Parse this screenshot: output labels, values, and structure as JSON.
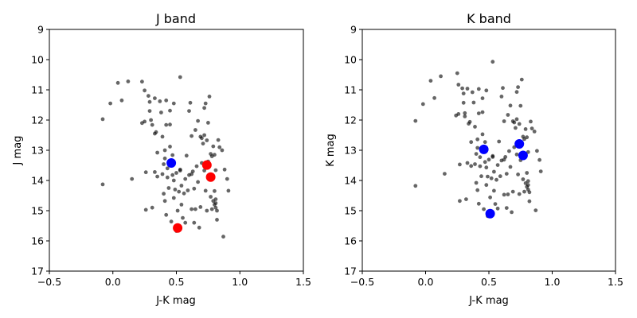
{
  "chart_data": [
    {
      "type": "scatter",
      "title": "J band",
      "xlabel": "J-K mag",
      "ylabel": "J mag",
      "xlim": [
        -0.5,
        1.5
      ],
      "ylim": [
        17,
        9
      ],
      "y_inverted": true,
      "xticks": [
        "−0.5",
        "0.0",
        "0.5",
        "1.0",
        "1.5"
      ],
      "xtick_values": [
        -0.5,
        0.0,
        0.5,
        1.0,
        1.5
      ],
      "yticks": [
        "9",
        "10",
        "11",
        "12",
        "13",
        "14",
        "15",
        "16",
        "17"
      ],
      "ytick_values": [
        9,
        10,
        11,
        12,
        13,
        14,
        15,
        16,
        17
      ],
      "grid": false,
      "series": [
        {
          "color": "#000000",
          "opacity": 0.6,
          "marker_size": "small",
          "points": [
            [
              -0.08,
              11.97
            ],
            [
              -0.08,
              14.13
            ],
            [
              -0.02,
              11.45
            ],
            [
              0.04,
              10.77
            ],
            [
              0.07,
              11.35
            ],
            [
              0.12,
              10.72
            ],
            [
              0.15,
              13.95
            ],
            [
              0.23,
              10.73
            ],
            [
              0.25,
              11.02
            ],
            [
              0.23,
              12.1
            ],
            [
              0.25,
              12.05
            ],
            [
              0.26,
              13.73
            ],
            [
              0.26,
              14.97
            ],
            [
              0.28,
              11.2
            ],
            [
              0.29,
              11.4
            ],
            [
              0.29,
              11.7
            ],
            [
              0.3,
              12.0
            ],
            [
              0.31,
              12.16
            ],
            [
              0.31,
              14.9
            ],
            [
              0.33,
              13.72
            ],
            [
              0.33,
              11.28
            ],
            [
              0.33,
              12.45
            ],
            [
              0.34,
              12.4
            ],
            [
              0.35,
              13.08
            ],
            [
              0.35,
              13.87
            ],
            [
              0.37,
              11.38
            ],
            [
              0.38,
              11.75
            ],
            [
              0.39,
              12.55
            ],
            [
              0.39,
              13.79
            ],
            [
              0.4,
              13.46
            ],
            [
              0.4,
              14.44
            ],
            [
              0.41,
              14.68
            ],
            [
              0.41,
              13.0
            ],
            [
              0.41,
              13.27
            ],
            [
              0.42,
              11.35
            ],
            [
              0.42,
              12.16
            ],
            [
              0.42,
              15.14
            ],
            [
              0.43,
              13.9
            ],
            [
              0.43,
              13.6
            ],
            [
              0.44,
              14.25
            ],
            [
              0.45,
              12.15
            ],
            [
              0.45,
              11.69
            ],
            [
              0.45,
              12.88
            ],
            [
              0.46,
              13.41
            ],
            [
              0.46,
              15.36
            ],
            [
              0.47,
              13.16
            ],
            [
              0.47,
              13.82
            ],
            [
              0.48,
              14.58
            ],
            [
              0.48,
              11.45
            ],
            [
              0.48,
              14.0
            ],
            [
              0.49,
              14.3
            ],
            [
              0.5,
              15.67
            ],
            [
              0.5,
              13.75
            ],
            [
              0.51,
              15.0
            ],
            [
              0.52,
              14.37
            ],
            [
              0.53,
              13.64
            ],
            [
              0.53,
              13.67
            ],
            [
              0.53,
              10.58
            ],
            [
              0.54,
              14.17
            ],
            [
              0.54,
              14.8
            ],
            [
              0.55,
              15.24
            ],
            [
              0.56,
              14.43
            ],
            [
              0.57,
              13.95
            ],
            [
              0.57,
              15.4
            ],
            [
              0.58,
              13.18
            ],
            [
              0.59,
              14.33
            ],
            [
              0.6,
              11.7
            ],
            [
              0.6,
              13.82
            ],
            [
              0.61,
              11.43
            ],
            [
              0.62,
              13.79
            ],
            [
              0.62,
              14.95
            ],
            [
              0.62,
              12.53
            ],
            [
              0.63,
              13.7
            ],
            [
              0.64,
              14.27
            ],
            [
              0.64,
              15.4
            ],
            [
              0.65,
              14.95
            ],
            [
              0.65,
              12.33
            ],
            [
              0.66,
              13.53
            ],
            [
              0.67,
              14.05
            ],
            [
              0.67,
              12.03
            ],
            [
              0.68,
              15.56
            ],
            [
              0.69,
              12.55
            ],
            [
              0.69,
              14.88
            ],
            [
              0.7,
              12.6
            ],
            [
              0.7,
              13.42
            ],
            [
              0.71,
              12.78
            ],
            [
              0.72,
              11.6
            ],
            [
              0.72,
              12.5
            ],
            [
              0.72,
              13.67
            ],
            [
              0.73,
              14.34
            ],
            [
              0.73,
              11.45
            ],
            [
              0.74,
              12.67
            ],
            [
              0.74,
              15.0
            ],
            [
              0.75,
              12.09
            ],
            [
              0.75,
              13.89
            ],
            [
              0.75,
              13.37
            ],
            [
              0.76,
              11.22
            ],
            [
              0.77,
              13.12
            ],
            [
              0.77,
              14.54
            ],
            [
              0.78,
              13.2
            ],
            [
              0.78,
              14.95
            ],
            [
              0.79,
              12.87
            ],
            [
              0.79,
              14.68
            ],
            [
              0.8,
              13.15
            ],
            [
              0.8,
              14.8
            ],
            [
              0.8,
              14.35
            ],
            [
              0.81,
              14.62
            ],
            [
              0.81,
              14.75
            ],
            [
              0.81,
              14.9
            ],
            [
              0.81,
              13.66
            ],
            [
              0.82,
              15.0
            ],
            [
              0.82,
              15.3
            ],
            [
              0.83,
              12.66
            ],
            [
              0.84,
              12.9
            ],
            [
              0.86,
              13.0
            ],
            [
              0.87,
              15.86
            ],
            [
              0.88,
              13.64
            ],
            [
              0.9,
              13.95
            ],
            [
              0.91,
              14.34
            ]
          ]
        },
        {
          "color": "#0000ff",
          "marker_size": "large",
          "points": [
            [
              0.46,
              13.42
            ]
          ]
        },
        {
          "color": "#ff0000",
          "marker_size": "large",
          "points": [
            [
              0.51,
              15.57
            ],
            [
              0.74,
              13.49
            ],
            [
              0.77,
              13.89
            ]
          ]
        }
      ]
    },
    {
      "type": "scatter",
      "title": "K band",
      "xlabel": "J-K mag",
      "ylabel": "K mag",
      "xlim": [
        -0.5,
        1.5
      ],
      "ylim": [
        17,
        9
      ],
      "y_inverted": true,
      "xticks": [
        "−0.5",
        "0.0",
        "0.5",
        "1.0",
        "1.5"
      ],
      "xtick_values": [
        -0.5,
        0.0,
        0.5,
        1.0,
        1.5
      ],
      "yticks": [
        "9",
        "10",
        "11",
        "12",
        "13",
        "14",
        "15",
        "16",
        "17"
      ],
      "ytick_values": [
        9,
        10,
        11,
        12,
        13,
        14,
        15,
        16,
        17
      ],
      "grid": false,
      "series": [
        {
          "color": "#000000",
          "opacity": 0.6,
          "marker_size": "small",
          "points": [
            [
              -0.08,
              12.03
            ],
            [
              -0.08,
              14.18
            ],
            [
              -0.02,
              11.47
            ],
            [
              0.04,
              10.7
            ],
            [
              0.07,
              11.27
            ],
            [
              0.12,
              10.55
            ],
            [
              0.15,
              13.78
            ],
            [
              0.25,
              10.45
            ],
            [
              0.26,
              10.83
            ],
            [
              0.24,
              11.85
            ],
            [
              0.26,
              11.8
            ],
            [
              0.27,
              13.47
            ],
            [
              0.27,
              14.68
            ],
            [
              0.29,
              10.95
            ],
            [
              0.3,
              11.12
            ],
            [
              0.3,
              11.43
            ],
            [
              0.31,
              11.77
            ],
            [
              0.31,
              11.88
            ],
            [
              0.32,
              14.62
            ],
            [
              0.33,
              13.42
            ],
            [
              0.33,
              10.96
            ],
            [
              0.34,
              12.12
            ],
            [
              0.35,
              12.06
            ],
            [
              0.36,
              12.73
            ],
            [
              0.36,
              13.52
            ],
            [
              0.37,
              11.08
            ],
            [
              0.38,
              11.42
            ],
            [
              0.39,
              12.22
            ],
            [
              0.39,
              13.46
            ],
            [
              0.4,
              13.12
            ],
            [
              0.4,
              14.08
            ],
            [
              0.41,
              14.32
            ],
            [
              0.41,
              12.64
            ],
            [
              0.41,
              12.92
            ],
            [
              0.42,
              10.97
            ],
            [
              0.42,
              11.78
            ],
            [
              0.42,
              14.77
            ],
            [
              0.43,
              13.53
            ],
            [
              0.43,
              13.23
            ],
            [
              0.44,
              13.86
            ],
            [
              0.45,
              11.74
            ],
            [
              0.45,
              11.28
            ],
            [
              0.45,
              12.47
            ],
            [
              0.46,
              13.0
            ],
            [
              0.46,
              14.95
            ],
            [
              0.47,
              12.73
            ],
            [
              0.47,
              13.39
            ],
            [
              0.48,
              14.15
            ],
            [
              0.48,
              11.02
            ],
            [
              0.48,
              13.57
            ],
            [
              0.49,
              13.87
            ],
            [
              0.49,
              15.18
            ],
            [
              0.5,
              13.31
            ],
            [
              0.51,
              14.56
            ],
            [
              0.52,
              13.93
            ],
            [
              0.53,
              13.19
            ],
            [
              0.53,
              13.22
            ],
            [
              0.53,
              10.07
            ],
            [
              0.54,
              13.71
            ],
            [
              0.54,
              14.34
            ],
            [
              0.55,
              14.78
            ],
            [
              0.56,
              13.98
            ],
            [
              0.57,
              13.49
            ],
            [
              0.57,
              14.93
            ],
            [
              0.58,
              12.71
            ],
            [
              0.59,
              13.86
            ],
            [
              0.6,
              11.22
            ],
            [
              0.6,
              13.34
            ],
            [
              0.61,
              10.94
            ],
            [
              0.62,
              13.31
            ],
            [
              0.62,
              14.47
            ],
            [
              0.62,
              12.04
            ],
            [
              0.63,
              13.22
            ],
            [
              0.64,
              13.78
            ],
            [
              0.64,
              14.91
            ],
            [
              0.65,
              14.46
            ],
            [
              0.65,
              11.83
            ],
            [
              0.66,
              13.03
            ],
            [
              0.67,
              13.55
            ],
            [
              0.67,
              11.52
            ],
            [
              0.68,
              15.05
            ],
            [
              0.69,
              12.04
            ],
            [
              0.69,
              14.37
            ],
            [
              0.7,
              12.08
            ],
            [
              0.7,
              12.9
            ],
            [
              0.71,
              12.26
            ],
            [
              0.72,
              11.07
            ],
            [
              0.72,
              11.97
            ],
            [
              0.72,
              13.14
            ],
            [
              0.73,
              13.8
            ],
            [
              0.73,
              10.91
            ],
            [
              0.74,
              12.13
            ],
            [
              0.74,
              14.45
            ],
            [
              0.75,
              11.53
            ],
            [
              0.75,
              13.33
            ],
            [
              0.75,
              12.81
            ],
            [
              0.76,
              10.66
            ],
            [
              0.77,
              12.55
            ],
            [
              0.77,
              13.96
            ],
            [
              0.78,
              12.63
            ],
            [
              0.78,
              14.37
            ],
            [
              0.79,
              12.3
            ],
            [
              0.79,
              14.09
            ],
            [
              0.8,
              12.57
            ],
            [
              0.8,
              14.21
            ],
            [
              0.8,
              13.75
            ],
            [
              0.81,
              14.02
            ],
            [
              0.81,
              14.15
            ],
            [
              0.81,
              14.3
            ],
            [
              0.81,
              13.06
            ],
            [
              0.82,
              14.39
            ],
            [
              0.82,
              14.69
            ],
            [
              0.83,
              12.05
            ],
            [
              0.84,
              12.28
            ],
            [
              0.86,
              12.38
            ],
            [
              0.87,
              14.99
            ],
            [
              0.88,
              13.02
            ],
            [
              0.9,
              13.32
            ],
            [
              0.91,
              13.7
            ]
          ]
        },
        {
          "color": "#0000ff",
          "marker_size": "large",
          "points": [
            [
              0.46,
              12.97
            ],
            [
              0.51,
              15.1
            ],
            [
              0.74,
              12.79
            ],
            [
              0.77,
              13.17
            ]
          ]
        }
      ]
    }
  ]
}
